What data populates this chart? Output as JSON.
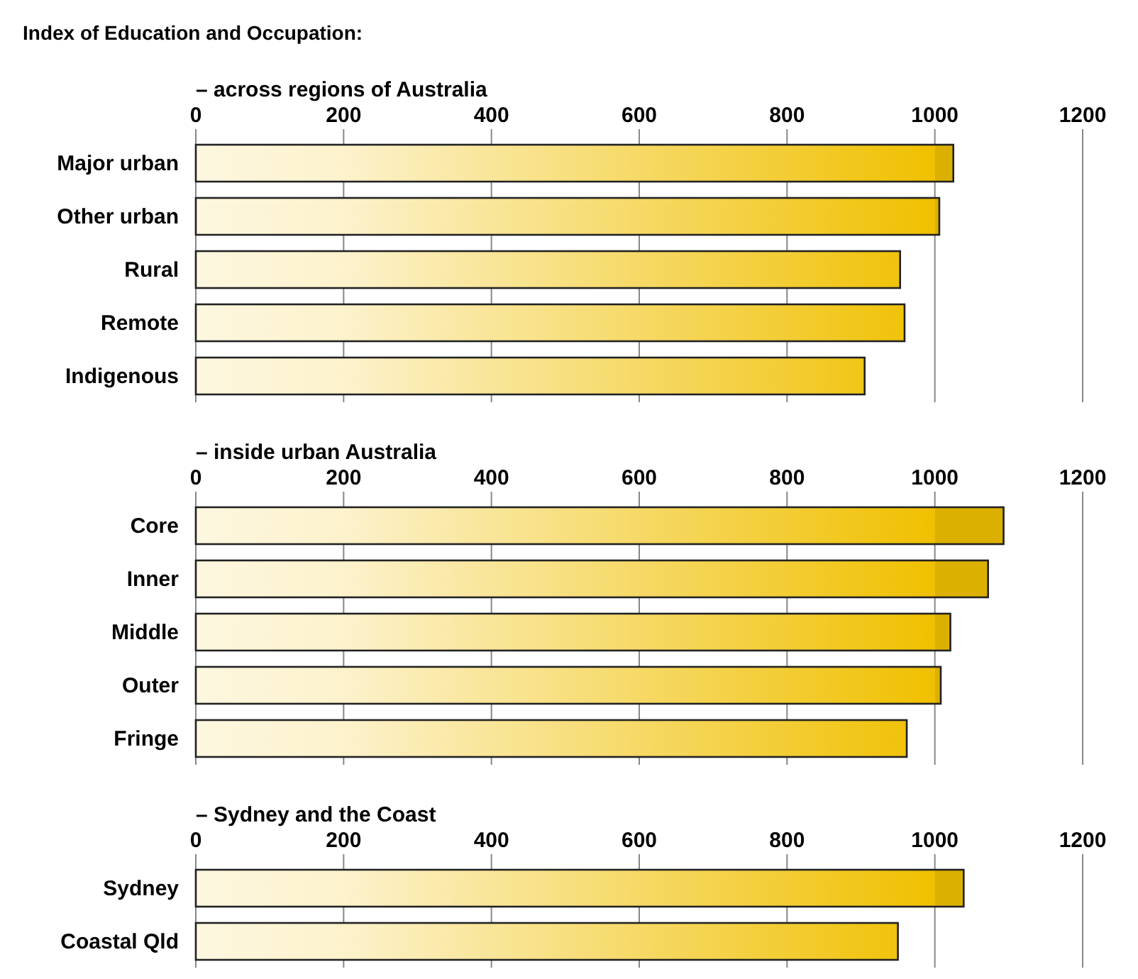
{
  "chart_data": [
    {
      "type": "bar",
      "orientation": "horizontal",
      "title": "Index of Education and Occupation:",
      "subtitle": "– across regions of Australia",
      "categories": [
        "Major urban",
        "Other urban",
        "Rural",
        "Remote",
        "Indigenous"
      ],
      "values": [
        1025,
        1006,
        953,
        959,
        905
      ],
      "color": "#f0c000",
      "xlim": [
        0,
        1200
      ],
      "xticks": [
        0,
        200,
        400,
        600,
        800,
        1000,
        1200
      ],
      "grid": "x"
    },
    {
      "type": "bar",
      "orientation": "horizontal",
      "subtitle": "– inside urban Australia",
      "categories": [
        "Core",
        "Inner",
        "Middle",
        "Outer",
        "Fringe"
      ],
      "values": [
        1093,
        1072,
        1021,
        1008,
        962
      ],
      "color": "#f0c000",
      "xlim": [
        0,
        1200
      ],
      "xticks": [
        0,
        200,
        400,
        600,
        800,
        1000,
        1200
      ],
      "grid": "x"
    },
    {
      "type": "bar",
      "orientation": "horizontal",
      "subtitle": "– Sydney and the Coast",
      "categories": [
        "Sydney",
        "Coastal Qld"
      ],
      "values": [
        1039,
        950
      ],
      "color": "#f0c000",
      "xlim": [
        0,
        1200
      ],
      "xticks": [
        0,
        200,
        400,
        600,
        800,
        1000,
        1200
      ],
      "grid": "x"
    }
  ]
}
